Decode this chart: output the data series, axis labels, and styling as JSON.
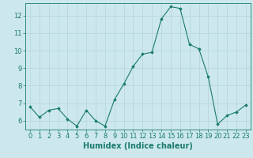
{
  "x": [
    0,
    1,
    2,
    3,
    4,
    5,
    6,
    7,
    8,
    9,
    10,
    11,
    12,
    13,
    14,
    15,
    16,
    17,
    18,
    19,
    20,
    21,
    22,
    23
  ],
  "y": [
    6.8,
    6.2,
    6.6,
    6.7,
    6.1,
    5.7,
    6.6,
    6.0,
    5.7,
    7.2,
    8.1,
    9.1,
    9.8,
    9.9,
    11.8,
    12.5,
    12.4,
    10.35,
    10.1,
    8.5,
    5.8,
    6.3,
    6.5,
    6.9
  ],
  "xlabel": "Humidex (Indice chaleur)",
  "xlim": [
    -0.5,
    23.5
  ],
  "ylim": [
    5.5,
    12.7
  ],
  "yticks": [
    6,
    7,
    8,
    9,
    10,
    11,
    12
  ],
  "xticks": [
    0,
    1,
    2,
    3,
    4,
    5,
    6,
    7,
    8,
    9,
    10,
    11,
    12,
    13,
    14,
    15,
    16,
    17,
    18,
    19,
    20,
    21,
    22,
    23
  ],
  "line_color": "#1a7a6e",
  "marker": "D",
  "marker_size": 1.8,
  "bg_color": "#cce8ec",
  "grid_color": "#b8d8dc",
  "tick_color": "#1a7a6e",
  "label_color": "#1a7a6e",
  "xlabel_fontsize": 7,
  "tick_fontsize": 6,
  "linewidth": 0.8
}
